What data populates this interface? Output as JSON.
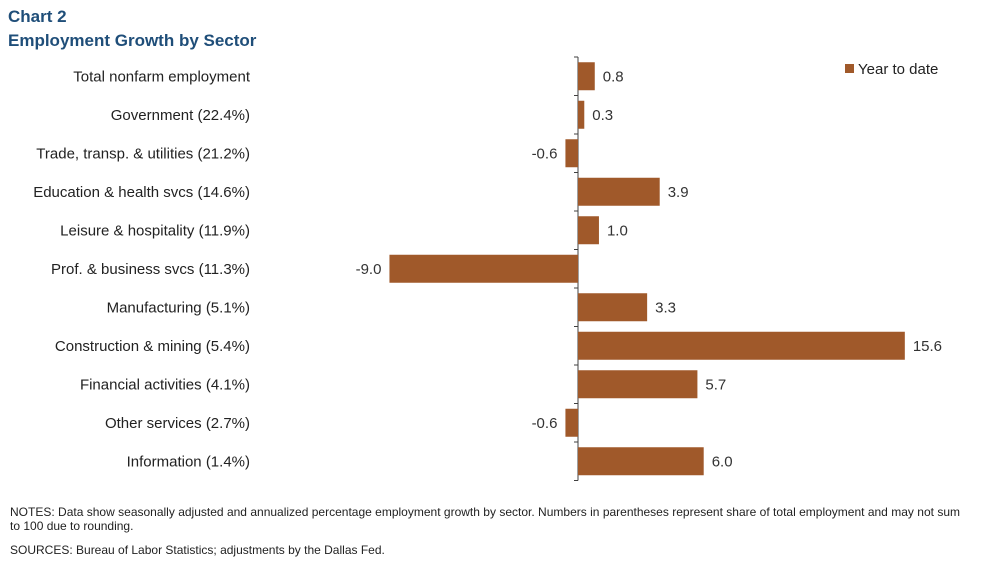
{
  "header": {
    "chart_label": "Chart 2",
    "title": "Employment Growth by Sector"
  },
  "footer": {
    "notes": "NOTES: Data show seasonally adjusted and annualized percentage employment growth by sector. Numbers in parentheses represent share of total employment and may not sum to 100 due to rounding.",
    "sources": "SOURCES: Bureau of Labor Statistics; adjustments by the Dallas Fed."
  },
  "chart_data": {
    "type": "bar",
    "orientation": "horizontal",
    "title": "Employment Growth by Sector",
    "categories": [
      "Total nonfarm employment",
      "Government (22.4%)",
      "Trade, transp. & utilities (21.2%)",
      "Education & health svcs (14.6%)",
      "Leisure & hospitality (11.9%)",
      "Prof. & business svcs (11.3%)",
      "Manufacturing (5.1%)",
      "Construction & mining (5.4%)",
      "Financial activities (4.1%)",
      "Other services (2.7%)",
      "Information (1.4%)"
    ],
    "series": [
      {
        "name": "Year to date",
        "values": [
          0.8,
          0.3,
          -0.6,
          3.9,
          1.0,
          -9.0,
          3.3,
          15.6,
          5.7,
          -0.6,
          6.0
        ],
        "color": "#a0592a"
      }
    ],
    "data_labels": [
      "0.8",
      "0.3",
      "-0.6",
      "3.9",
      "1.0",
      "-9.0",
      "3.3",
      "15.6",
      "5.7",
      "-0.6",
      "6.0"
    ],
    "xlim": [
      -9.0,
      15.6
    ],
    "grid": false,
    "legend_position": "top-right"
  }
}
